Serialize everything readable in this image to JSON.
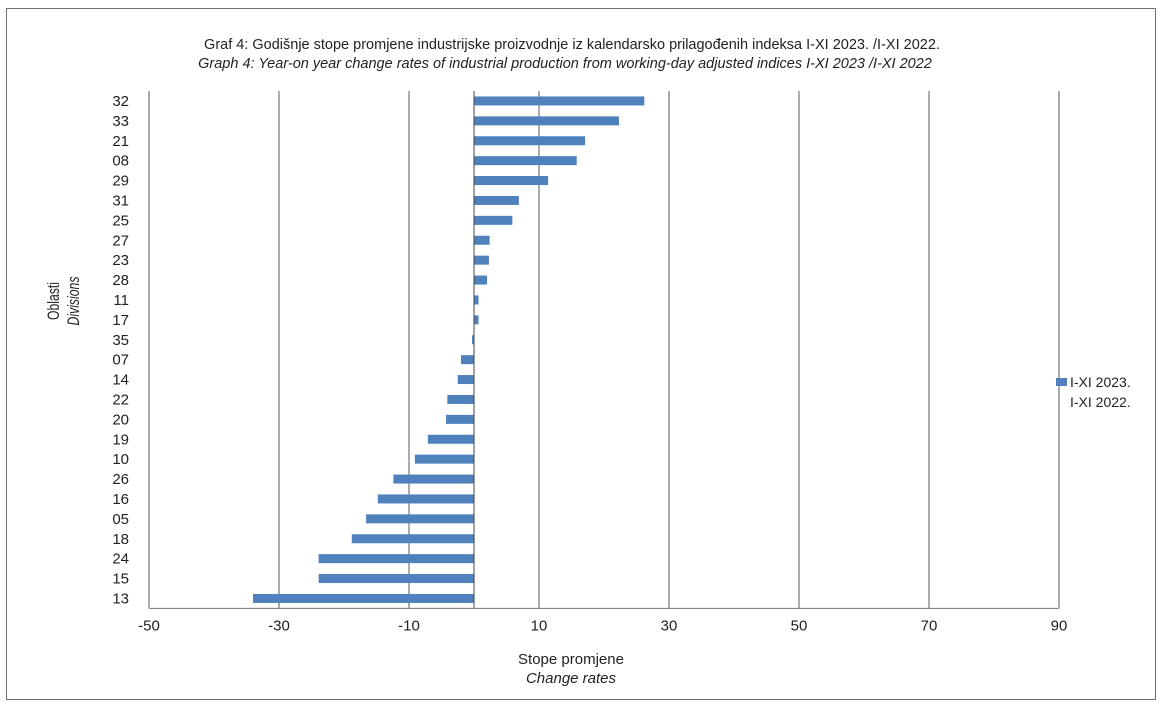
{
  "chart_data": {
    "type": "bar",
    "orientation": "horizontal",
    "title": "Graf 4: Godišnje stope promjene industrijske proizvodnje iz kalendarsko prilagođenih indeksa I-XI 2023. /I-XI 2022.",
    "subtitle": "Graph 4: Year-on year change rates of industrial production from working-day adjusted indices I-XI 2023  /I-XI 2022",
    "xlabel": "Stope promjene",
    "xlabel_en": "Change rates",
    "ylabel": "Oblasti",
    "ylabel_en": "Divisions",
    "xlim": [
      -50,
      90
    ],
    "xticks": [
      -50,
      -30,
      -10,
      10,
      30,
      50,
      70,
      90
    ],
    "grid": true,
    "legend": {
      "position": "right",
      "entries": [
        "I-XI 2023.",
        "I-XI 2022."
      ]
    },
    "color": "#4f81bd",
    "categories": [
      "32",
      "33",
      "21",
      "08",
      "29",
      "31",
      "25",
      "27",
      "23",
      "28",
      "11",
      "17",
      "35",
      "07",
      "14",
      "22",
      "20",
      "19",
      "10",
      "26",
      "16",
      "05",
      "18",
      "24",
      "15",
      "13"
    ],
    "series": [
      {
        "name": "I-XI 2023. I-XI 2022.",
        "values": [
          26.2,
          22.3,
          17.1,
          15.8,
          11.4,
          6.9,
          5.9,
          2.4,
          2.3,
          2.0,
          0.7,
          0.7,
          -0.3,
          -2.0,
          -2.5,
          -4.1,
          -4.3,
          -7.1,
          -9.1,
          -12.4,
          -14.8,
          -16.6,
          -18.8,
          -23.9,
          -23.9,
          -34.0
        ]
      }
    ]
  }
}
